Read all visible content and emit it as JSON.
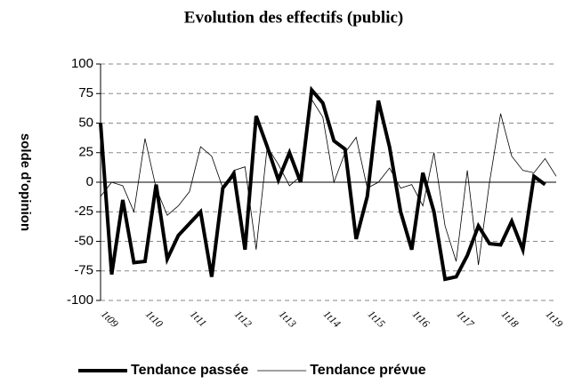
{
  "chart_data": {
    "type": "line",
    "title": "Evolution des effectifs (public)",
    "y_label": "solde d'opinion",
    "categories": [
      "1t09",
      null,
      null,
      null,
      "1t10",
      null,
      null,
      null,
      "1t11",
      null,
      null,
      null,
      "1t12",
      null,
      null,
      null,
      "1t13",
      null,
      null,
      null,
      "1t14",
      null,
      null,
      null,
      "1t15",
      null,
      null,
      null,
      "1t16",
      null,
      null,
      null,
      "1t17",
      null,
      null,
      null,
      "1t18",
      null,
      null,
      null,
      "1t19",
      null
    ],
    "series": [
      {
        "name": "Tendance passée",
        "color": "#000000",
        "values": [
          50,
          -78,
          -15,
          -68,
          -67,
          -2,
          -65,
          -45,
          -35,
          -25,
          -80,
          -5,
          7,
          -57,
          56,
          30,
          2,
          25,
          0,
          78,
          67,
          35,
          28,
          -48,
          -12,
          69,
          30,
          -25,
          -57,
          8,
          -25,
          -82,
          -80,
          -62,
          -37,
          -52,
          -53,
          -33,
          -57,
          5,
          -2,
          null
        ]
      },
      {
        "name": "Tendance prévue",
        "color": "#000000",
        "values": [
          -12,
          0,
          -3,
          -25,
          37,
          -5,
          -28,
          -20,
          -8,
          30,
          22,
          -5,
          10,
          13,
          -57,
          30,
          15,
          -3,
          5,
          70,
          55,
          0,
          25,
          38,
          -5,
          0,
          12,
          -5,
          -2,
          -20,
          25,
          -37,
          -67,
          10,
          -70,
          0,
          58,
          22,
          10,
          8,
          20,
          5
        ]
      }
    ],
    "ylim": [
      -100,
      100
    ],
    "yticks": [
      -100,
      -75,
      -50,
      -25,
      0,
      25,
      50,
      75,
      100
    ],
    "grid": true,
    "legend": "bottom"
  }
}
